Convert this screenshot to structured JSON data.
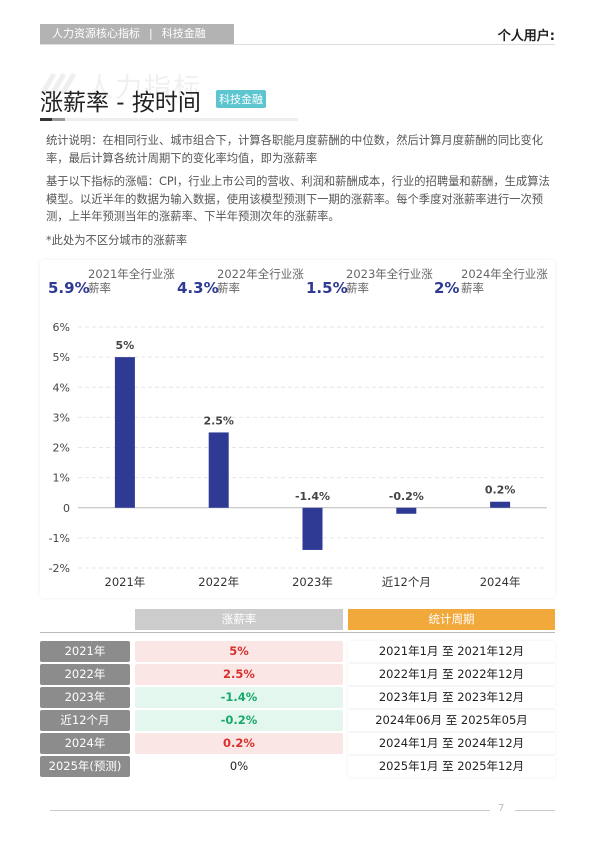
{
  "header": {
    "tags": [
      "人力资源核心指标",
      "科技金融"
    ],
    "user": "个人用户:"
  },
  "watermark": "人力指标",
  "title": "涨薪率 - 按时间",
  "badge": "科技金融",
  "paragraphs": [
    "统计说明：在相同行业、城市组合下，计算各职能月度薪酬的中位数，然后计算月度薪酬的同比变化率，最后计算各统计周期下的变化率均值，即为涨薪率",
    "基于以下指标的涨幅：CPI，行业上市公司的营收、利润和薪酬成本，行业的招聘量和薪酬，生成算法模型。以近半年的数据为输入数据，使用该模型预测下一期的涨薪率。每个季度对涨薪率进行一次预测，上半年预测当年的涨薪率、下半年预测次年的涨薪率。",
    "*此处为不区分城市的涨薪率"
  ],
  "kpis": [
    {
      "value": "5.9%",
      "label": "2021年全行业涨薪率"
    },
    {
      "value": "4.3%",
      "label": "2022年全行业涨薪率"
    },
    {
      "value": "1.5%",
      "label": "2023年全行业涨薪率"
    },
    {
      "value": "2%",
      "label": "2024年全行业涨薪率"
    }
  ],
  "chart_data": {
    "type": "bar",
    "categories": [
      "2021年",
      "2022年",
      "2023年",
      "近12个月",
      "2024年"
    ],
    "values": [
      5,
      2.5,
      -1.4,
      -0.2,
      0.2
    ],
    "value_labels": [
      "5%",
      "2.5%",
      "-1.4%",
      "-0.2%",
      "0.2%"
    ],
    "color": "#2e3a94",
    "ylim": [
      -2,
      6
    ],
    "yticks": [
      {
        "value": -2,
        "label": "-2%"
      },
      {
        "value": -1,
        "label": "-1%"
      },
      0,
      {
        "value": 1,
        "label": "1%"
      },
      {
        "value": 2,
        "label": "2%"
      },
      {
        "value": 3,
        "label": "3%"
      },
      {
        "value": 4,
        "label": "4%"
      },
      {
        "value": 5,
        "label": "5%"
      },
      {
        "value": 6,
        "label": "6%"
      }
    ],
    "grid": true
  },
  "table": {
    "headers": [
      "涨薪率",
      "统计周期"
    ],
    "rows": [
      [
        "2021年",
        "5%",
        "2021年1月 至 2021年12月"
      ],
      [
        "2022年",
        "2.5%",
        "2022年1月 至 2022年12月"
      ],
      [
        "2023年",
        "-1.4%",
        "2023年1月 至 2023年12月"
      ],
      [
        "近12个月",
        "-0.2%",
        "2024年06月 至 2025年05月"
      ],
      [
        "2024年",
        "0.2%",
        "2024年1月 至 2024年12月"
      ],
      [
        "2025年(预测)",
        "0%",
        "2025年1月 至 2025年12月"
      ]
    ]
  },
  "footer": {
    "page": "7"
  }
}
